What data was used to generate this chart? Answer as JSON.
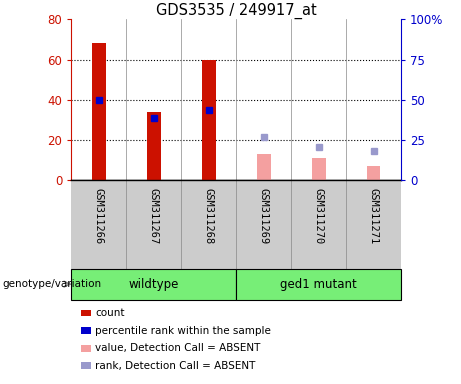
{
  "title": "GDS3535 / 249917_at",
  "samples": [
    "GSM311266",
    "GSM311267",
    "GSM311268",
    "GSM311269",
    "GSM311270",
    "GSM311271"
  ],
  "present_count": [
    68,
    34,
    60,
    null,
    null,
    null
  ],
  "present_rank": [
    50,
    39,
    44,
    null,
    null,
    null
  ],
  "absent_value": [
    null,
    null,
    null,
    13,
    11,
    7
  ],
  "absent_rank": [
    null,
    null,
    null,
    27,
    21,
    18
  ],
  "left_ylim": [
    0,
    80
  ],
  "right_ylim": [
    0,
    100
  ],
  "left_yticks": [
    0,
    20,
    40,
    60,
    80
  ],
  "right_yticks": [
    0,
    25,
    50,
    75,
    100
  ],
  "right_yticklabels": [
    "0",
    "25",
    "50",
    "75",
    "100%"
  ],
  "count_color": "#cc1100",
  "rank_color": "#0000cc",
  "absent_value_color": "#f4a0a0",
  "absent_rank_color": "#9999cc",
  "bg_color": "#cccccc",
  "group_green": "#77ee77",
  "left_axis_color": "#cc1100",
  "right_axis_color": "#0000cc",
  "dotted_yticks": [
    20,
    40,
    60
  ],
  "legend_items": [
    {
      "label": "count",
      "color": "#cc1100"
    },
    {
      "label": "percentile rank within the sample",
      "color": "#0000cc"
    },
    {
      "label": "value, Detection Call = ABSENT",
      "color": "#f4a0a0"
    },
    {
      "label": "rank, Detection Call = ABSENT",
      "color": "#9999cc"
    }
  ]
}
